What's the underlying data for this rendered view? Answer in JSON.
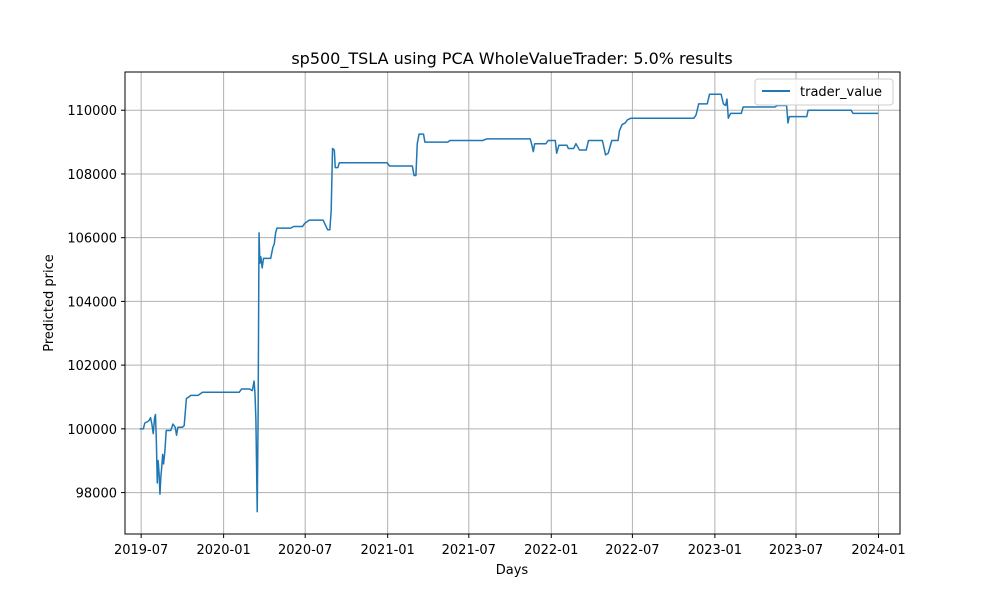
{
  "chart_data": {
    "type": "line",
    "title": "sp500_TSLA using PCA WholeValueTrader: 5.0% results",
    "xlabel": "Days",
    "ylabel": "Predicted price",
    "grid": true,
    "legend_position": "top-right",
    "xlim": [
      "2019-05-26",
      "2024-02-18"
    ],
    "ylim": [
      96700,
      111200
    ],
    "x_ticks": [
      {
        "date": "2019-07-01",
        "label": "2019-07"
      },
      {
        "date": "2020-01-01",
        "label": "2020-01"
      },
      {
        "date": "2020-07-01",
        "label": "2020-07"
      },
      {
        "date": "2021-01-01",
        "label": "2021-01"
      },
      {
        "date": "2021-07-01",
        "label": "2021-07"
      },
      {
        "date": "2022-01-01",
        "label": "2022-01"
      },
      {
        "date": "2022-07-01",
        "label": "2022-07"
      },
      {
        "date": "2023-01-01",
        "label": "2023-01"
      },
      {
        "date": "2023-07-01",
        "label": "2023-07"
      },
      {
        "date": "2024-01-01",
        "label": "2024-01"
      }
    ],
    "y_ticks": [
      98000,
      100000,
      102000,
      104000,
      106000,
      108000,
      110000
    ],
    "series": [
      {
        "name": "trader_value",
        "color": "#1f77b4",
        "points": [
          [
            "2019-06-28",
            100000
          ],
          [
            "2019-07-06",
            100000
          ],
          [
            "2019-07-09",
            100180
          ],
          [
            "2019-07-18",
            100250
          ],
          [
            "2019-07-22",
            100350
          ],
          [
            "2019-07-25",
            100150
          ],
          [
            "2019-07-28",
            99850
          ],
          [
            "2019-07-31",
            100350
          ],
          [
            "2019-08-02",
            100450
          ],
          [
            "2019-08-04",
            99600
          ],
          [
            "2019-08-06",
            98300
          ],
          [
            "2019-08-08",
            99000
          ],
          [
            "2019-08-10",
            98600
          ],
          [
            "2019-08-12",
            97950
          ],
          [
            "2019-08-14",
            98500
          ],
          [
            "2019-08-16",
            98800
          ],
          [
            "2019-08-18",
            99200
          ],
          [
            "2019-08-20",
            98900
          ],
          [
            "2019-08-23",
            99300
          ],
          [
            "2019-08-26",
            99950
          ],
          [
            "2019-09-05",
            99950
          ],
          [
            "2019-09-10",
            100150
          ],
          [
            "2019-09-15",
            100050
          ],
          [
            "2019-09-18",
            99800
          ],
          [
            "2019-09-21",
            100050
          ],
          [
            "2019-10-01",
            100050
          ],
          [
            "2019-10-05",
            100100
          ],
          [
            "2019-10-10",
            100950
          ],
          [
            "2019-10-15",
            101000
          ],
          [
            "2019-10-20",
            101050
          ],
          [
            "2019-11-05",
            101050
          ],
          [
            "2019-11-15",
            101150
          ],
          [
            "2019-12-20",
            101150
          ],
          [
            "2020-01-20",
            101150
          ],
          [
            "2020-02-05",
            101150
          ],
          [
            "2020-02-10",
            101250
          ],
          [
            "2020-02-28",
            101250
          ],
          [
            "2020-03-05",
            101200
          ],
          [
            "2020-03-09",
            101500
          ],
          [
            "2020-03-11",
            101100
          ],
          [
            "2020-03-13",
            100300
          ],
          [
            "2020-03-16",
            97400
          ],
          [
            "2020-03-18",
            100500
          ],
          [
            "2020-03-20",
            106150
          ],
          [
            "2020-03-22",
            105200
          ],
          [
            "2020-03-24",
            105400
          ],
          [
            "2020-03-27",
            105050
          ],
          [
            "2020-03-30",
            105350
          ],
          [
            "2020-04-15",
            105350
          ],
          [
            "2020-04-20",
            105700
          ],
          [
            "2020-04-23",
            105800
          ],
          [
            "2020-04-26",
            106150
          ],
          [
            "2020-04-29",
            106300
          ],
          [
            "2020-05-30",
            106300
          ],
          [
            "2020-06-05",
            106350
          ],
          [
            "2020-06-25",
            106350
          ],
          [
            "2020-06-30",
            106450
          ],
          [
            "2020-07-10",
            106550
          ],
          [
            "2020-08-10",
            106550
          ],
          [
            "2020-08-20",
            106250
          ],
          [
            "2020-08-25",
            106250
          ],
          [
            "2020-08-28",
            106850
          ],
          [
            "2020-08-31",
            108800
          ],
          [
            "2020-09-04",
            108750
          ],
          [
            "2020-09-06",
            108200
          ],
          [
            "2020-09-12",
            108200
          ],
          [
            "2020-09-15",
            108350
          ],
          [
            "2020-12-31",
            108350
          ],
          [
            "2021-01-05",
            108250
          ],
          [
            "2021-02-25",
            108250
          ],
          [
            "2021-03-01",
            107950
          ],
          [
            "2021-03-05",
            107950
          ],
          [
            "2021-03-08",
            108950
          ],
          [
            "2021-03-12",
            109250
          ],
          [
            "2021-03-22",
            109250
          ],
          [
            "2021-03-25",
            109000
          ],
          [
            "2021-05-15",
            109000
          ],
          [
            "2021-05-20",
            109050
          ],
          [
            "2021-08-01",
            109050
          ],
          [
            "2021-08-10",
            109100
          ],
          [
            "2021-11-15",
            109100
          ],
          [
            "2021-11-18",
            108950
          ],
          [
            "2021-11-22",
            108700
          ],
          [
            "2021-11-25",
            108950
          ],
          [
            "2021-12-20",
            108950
          ],
          [
            "2021-12-25",
            109050
          ],
          [
            "2022-01-10",
            109050
          ],
          [
            "2022-01-13",
            108650
          ],
          [
            "2022-01-18",
            108900
          ],
          [
            "2022-02-05",
            108900
          ],
          [
            "2022-02-08",
            108800
          ],
          [
            "2022-02-20",
            108800
          ],
          [
            "2022-02-25",
            108950
          ],
          [
            "2022-03-05",
            108750
          ],
          [
            "2022-03-20",
            108750
          ],
          [
            "2022-03-25",
            109050
          ],
          [
            "2022-04-25",
            109050
          ],
          [
            "2022-04-29",
            108800
          ],
          [
            "2022-05-02",
            108600
          ],
          [
            "2022-05-08",
            108650
          ],
          [
            "2022-05-12",
            108850
          ],
          [
            "2022-05-16",
            109050
          ],
          [
            "2022-05-30",
            109050
          ],
          [
            "2022-06-02",
            109350
          ],
          [
            "2022-06-08",
            109550
          ],
          [
            "2022-06-15",
            109600
          ],
          [
            "2022-06-20",
            109700
          ],
          [
            "2022-06-28",
            109750
          ],
          [
            "2022-11-15",
            109750
          ],
          [
            "2022-11-20",
            109850
          ],
          [
            "2022-11-26",
            110200
          ],
          [
            "2022-12-15",
            110200
          ],
          [
            "2022-12-20",
            110500
          ],
          [
            "2023-01-15",
            110500
          ],
          [
            "2023-01-20",
            110200
          ],
          [
            "2023-01-25",
            110150
          ],
          [
            "2023-01-28",
            110350
          ],
          [
            "2023-01-31",
            109750
          ],
          [
            "2023-02-05",
            109900
          ],
          [
            "2023-03-01",
            109900
          ],
          [
            "2023-03-05",
            110100
          ],
          [
            "2023-05-15",
            110100
          ],
          [
            "2023-05-20",
            110150
          ],
          [
            "2023-06-10",
            110150
          ],
          [
            "2023-06-13",
            109600
          ],
          [
            "2023-06-16",
            109800
          ],
          [
            "2023-07-25",
            109800
          ],
          [
            "2023-07-28",
            110000
          ],
          [
            "2023-11-01",
            110000
          ],
          [
            "2023-11-05",
            109900
          ],
          [
            "2023-12-31",
            109900
          ]
        ]
      }
    ]
  }
}
